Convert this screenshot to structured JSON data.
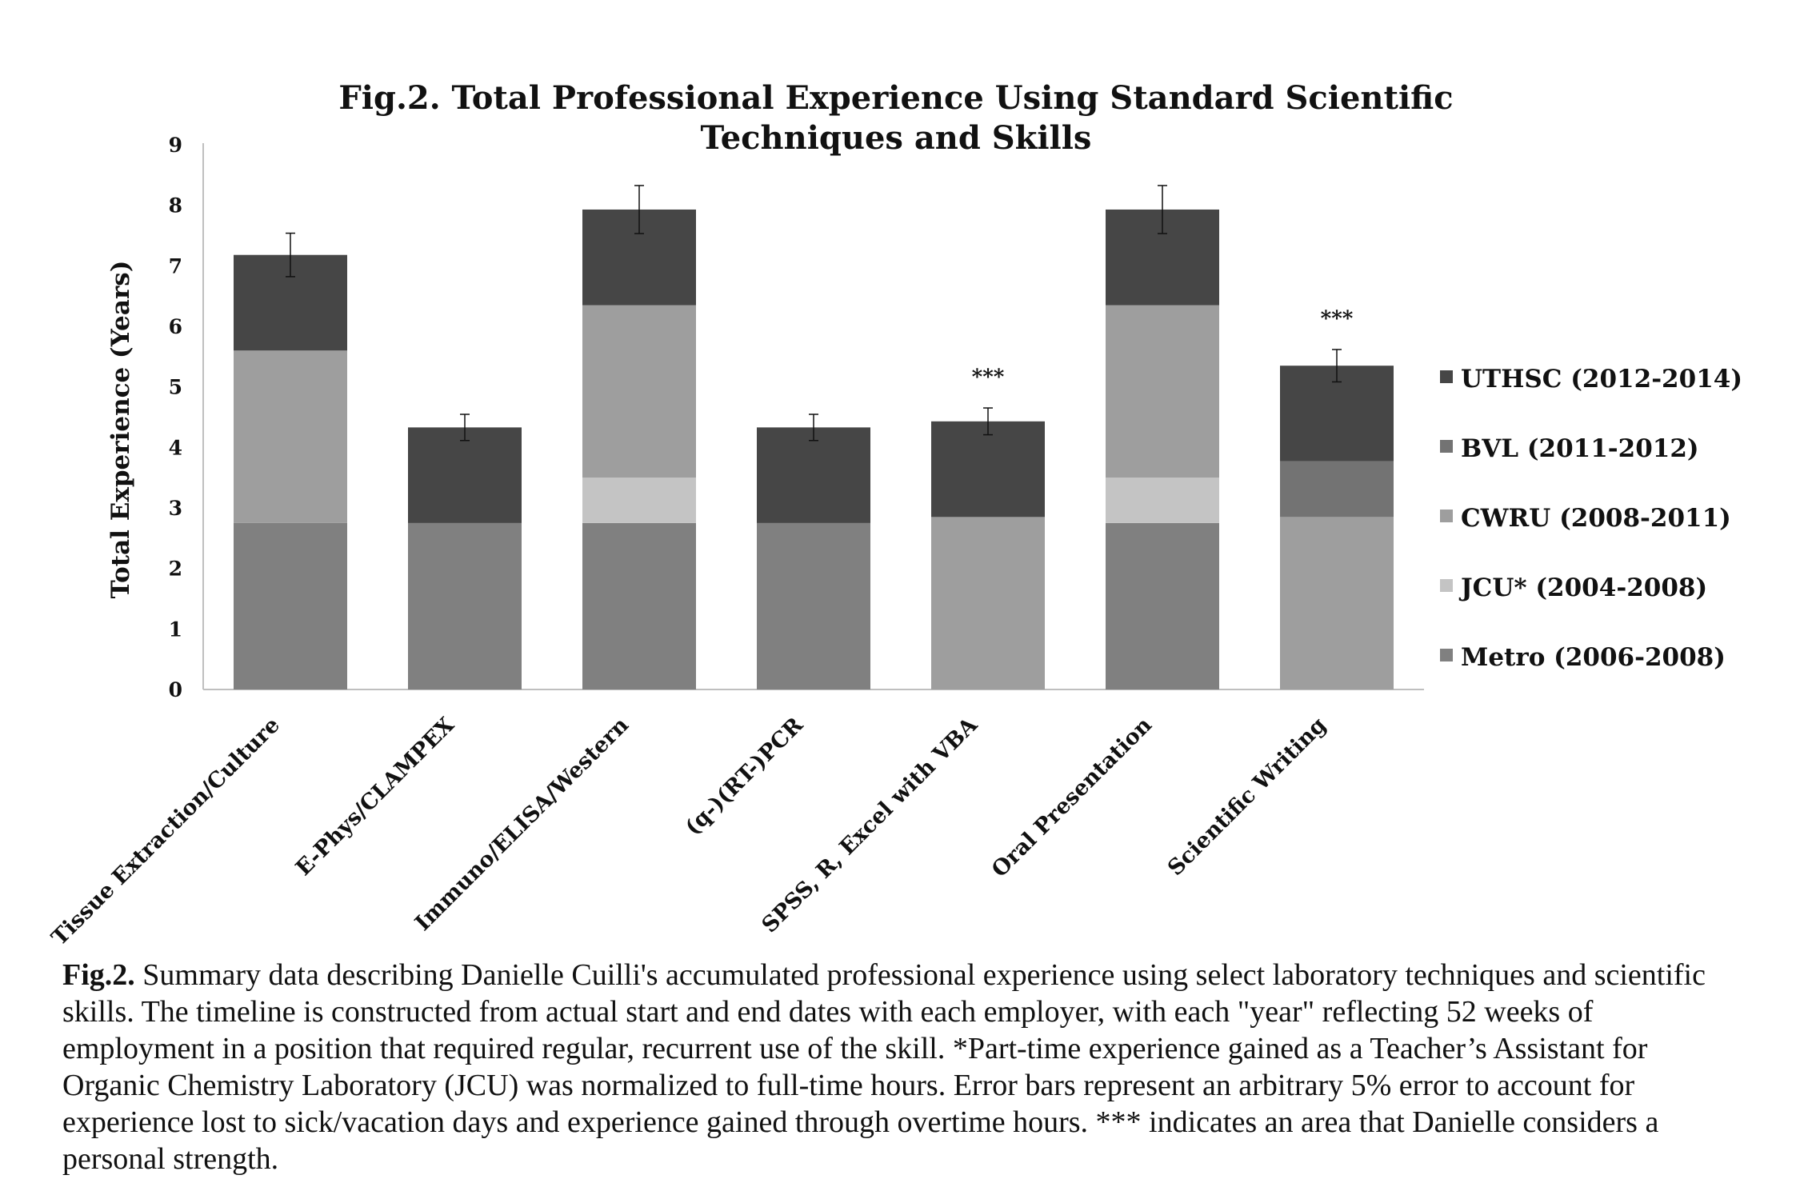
{
  "chart_data": {
    "type": "bar",
    "stacked": true,
    "title": "Fig.2. Total Professional Experience Using Standard Scientific Techniques and Skills",
    "title_lines": [
      "Fig.2. Total Professional Experience Using Standard Scientific",
      "Techniques and Skills"
    ],
    "ylabel": "Total Experience (Years)",
    "xlabel": "",
    "ylim": [
      0,
      9
    ],
    "yticks": [
      "0",
      "1",
      "2",
      "3",
      "4",
      "5",
      "6",
      "7",
      "8",
      "9"
    ],
    "grid": false,
    "legend_position": "right",
    "categories": [
      "Tissue Extraction/Culture",
      "E-Phys/CLAMPEX",
      "Immuno/ELISA/Western",
      "(q-)(RT-)PCR",
      "SPSS, R, Excel with VBA",
      "Oral Presentation",
      "Scientific Writing"
    ],
    "series": [
      {
        "name": "Metro (2006-2008)",
        "color": "#808080",
        "values": [
          2.75,
          2.75,
          2.75,
          2.75,
          0,
          2.75,
          0
        ]
      },
      {
        "name": "JCU* (2004-2008)",
        "color": "#c4c4c4",
        "values": [
          0,
          0,
          0.75,
          0,
          0,
          0.75,
          0
        ]
      },
      {
        "name": "CWRU (2008-2011)",
        "color": "#9e9e9e",
        "values": [
          2.85,
          0,
          2.85,
          0,
          2.85,
          2.85,
          2.85
        ]
      },
      {
        "name": "BVL (2011-2012)",
        "color": "#737373",
        "values": [
          0,
          0,
          0,
          0,
          0,
          0,
          0.92
        ]
      },
      {
        "name": "UTHSC (2012-2014)",
        "color": "#464646",
        "values": [
          1.58,
          1.58,
          1.58,
          1.58,
          1.58,
          1.58,
          1.58
        ]
      }
    ],
    "totals": [
      7.18,
      4.33,
      7.93,
      4.33,
      4.43,
      7.93,
      5.35
    ],
    "error_bar_pct": 5,
    "annotations": [
      {
        "category": "SPSS, R, Excel with VBA",
        "text": "***"
      },
      {
        "category": "Scientific Writing",
        "text": "***"
      }
    ]
  },
  "caption": {
    "lead": "Fig.2.",
    "text": " Summary data describing Danielle Cuilli's accumulated professional experience using select laboratory techniques and scientific skills. The timeline is constructed from actual start and end dates with each employer, with each \"year\" reflecting 52 weeks of employment in a position that required regular, recurrent use of  the skill.  *Part-time experience gained as a Teacher’s Assistant for Organic Chemistry Laboratory (JCU) was normalized to full-time hours.  Error bars represent an arbitrary 5% error to account for experience lost to sick/vacation days and experience gained through overtime hours.  *** indicates an area that Danielle considers a personal strength."
  }
}
